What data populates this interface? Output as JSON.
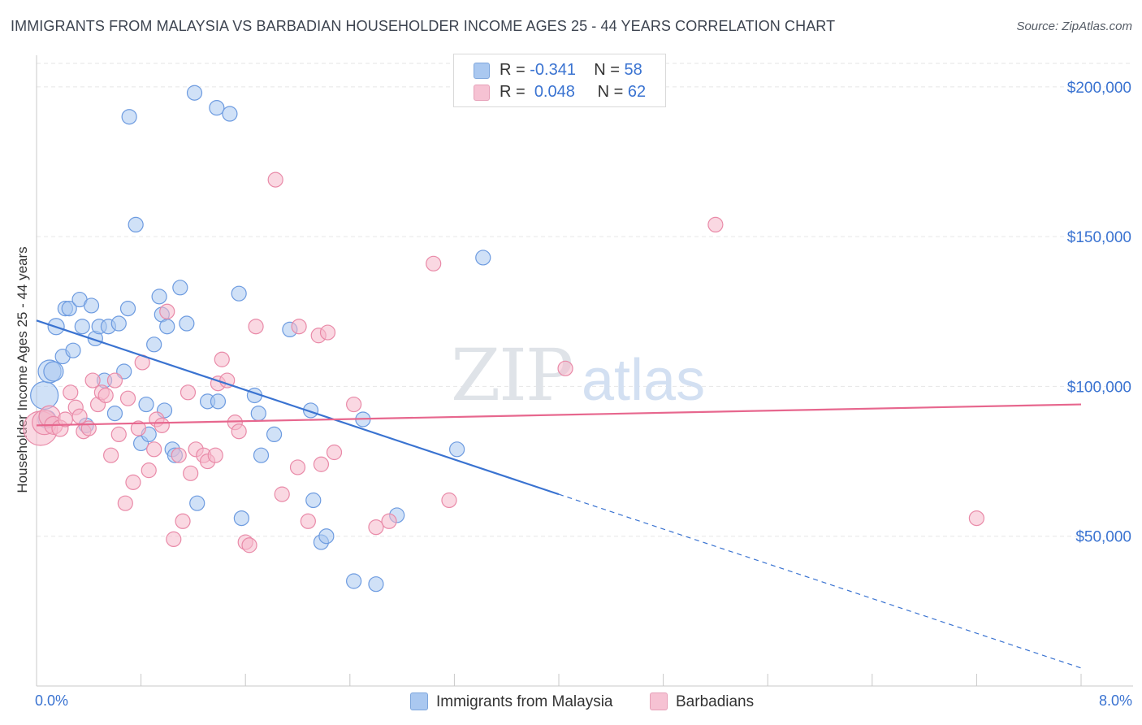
{
  "title": "IMMIGRANTS FROM MALAYSIA VS BARBADIAN HOUSEHOLDER INCOME AGES 25 - 44 YEARS CORRELATION CHART",
  "source": "Source: ZipAtlas.com",
  "watermark": {
    "zip": "ZIP",
    "atlas": "atlas"
  },
  "legend": {
    "series1": {
      "r_label": "R =",
      "r_value": "-0.341",
      "n_label": "N =",
      "n_value": "58"
    },
    "series2": {
      "r_label": "R =",
      "r_value": "0.048",
      "n_label": "N =",
      "n_value": "62"
    }
  },
  "colors": {
    "malaysia": "#3a73d1",
    "malaysia_fill": "#aac8f0",
    "barbadian": "#e7678e",
    "barbadian_fill": "#f6b8cb",
    "tick_label": "#3a73d1"
  },
  "chart_data": {
    "type": "scatter",
    "xlabel": "",
    "ylabel": "Householder Income Ages 25 - 44 years",
    "x_tick_labels": [
      "0.0%",
      "8.0%"
    ],
    "y_tick_labels": [
      "$50,000",
      "$100,000",
      "$150,000",
      "$200,000"
    ],
    "y_ticks": [
      50000,
      100000,
      150000,
      200000
    ],
    "xlim": [
      0.0,
      8.0
    ],
    "ylim": [
      0,
      210000
    ],
    "grid": true,
    "legend_position": "bottom",
    "series": [
      {
        "name": "Immigrants from Malaysia",
        "trend": {
          "x": [
            0.0,
            4.0,
            8.0
          ],
          "y": [
            122000,
            64000,
            6000
          ],
          "dashed_from": 4.0
        },
        "points": [
          [
            0.06,
            97000
          ],
          [
            0.08,
            89000
          ],
          [
            0.1,
            105000
          ],
          [
            0.13,
            105000
          ],
          [
            0.15,
            120000
          ],
          [
            0.2,
            110000
          ],
          [
            0.22,
            126000
          ],
          [
            0.25,
            126000
          ],
          [
            0.28,
            112000
          ],
          [
            0.33,
            129000
          ],
          [
            0.35,
            120000
          ],
          [
            0.38,
            87000
          ],
          [
            0.42,
            127000
          ],
          [
            0.45,
            116000
          ],
          [
            0.48,
            120000
          ],
          [
            0.52,
            102000
          ],
          [
            0.55,
            120000
          ],
          [
            0.6,
            91000
          ],
          [
            0.63,
            121000
          ],
          [
            0.67,
            105000
          ],
          [
            0.7,
            126000
          ],
          [
            0.71,
            190000
          ],
          [
            0.76,
            154000
          ],
          [
            0.8,
            81000
          ],
          [
            0.84,
            94000
          ],
          [
            0.86,
            84000
          ],
          [
            0.9,
            114000
          ],
          [
            0.94,
            130000
          ],
          [
            0.96,
            124000
          ],
          [
            0.98,
            92000
          ],
          [
            1.0,
            120000
          ],
          [
            1.04,
            79000
          ],
          [
            1.06,
            77000
          ],
          [
            1.1,
            133000
          ],
          [
            1.15,
            121000
          ],
          [
            1.21,
            198000
          ],
          [
            1.23,
            61000
          ],
          [
            1.31,
            95000
          ],
          [
            1.38,
            193000
          ],
          [
            1.39,
            95000
          ],
          [
            1.48,
            191000
          ],
          [
            1.55,
            131000
          ],
          [
            1.57,
            56000
          ],
          [
            1.67,
            97000
          ],
          [
            1.7,
            91000
          ],
          [
            1.72,
            77000
          ],
          [
            1.82,
            84000
          ],
          [
            1.94,
            119000
          ],
          [
            2.1,
            92000
          ],
          [
            2.12,
            62000
          ],
          [
            2.18,
            48000
          ],
          [
            2.22,
            50000
          ],
          [
            2.43,
            35000
          ],
          [
            2.5,
            89000
          ],
          [
            2.6,
            34000
          ],
          [
            2.76,
            57000
          ],
          [
            3.22,
            79000
          ],
          [
            3.42,
            143000
          ]
        ],
        "sizes": [
          18,
          12,
          15,
          13,
          11,
          10,
          10,
          10,
          10,
          10,
          10,
          10,
          10,
          10,
          10,
          10,
          10,
          10,
          10,
          10,
          10,
          10,
          10,
          10,
          10,
          10,
          10,
          10,
          10,
          10,
          10,
          10,
          10,
          10,
          10,
          10,
          10,
          10,
          10,
          10,
          10,
          10,
          10,
          10,
          10,
          10,
          10,
          10,
          10,
          10,
          10,
          10,
          10,
          10,
          10,
          10,
          10,
          10
        ]
      },
      {
        "name": "Barbadians",
        "trend": {
          "x": [
            0.0,
            8.0
          ],
          "y": [
            87000,
            94000
          ]
        },
        "points": [
          [
            0.03,
            86000
          ],
          [
            0.06,
            88000
          ],
          [
            0.1,
            90000
          ],
          [
            0.13,
            87000
          ],
          [
            0.18,
            86000
          ],
          [
            0.22,
            89000
          ],
          [
            0.26,
            98000
          ],
          [
            0.3,
            93000
          ],
          [
            0.33,
            90000
          ],
          [
            0.36,
            85000
          ],
          [
            0.4,
            86000
          ],
          [
            0.43,
            102000
          ],
          [
            0.47,
            94000
          ],
          [
            0.5,
            98000
          ],
          [
            0.53,
            97000
          ],
          [
            0.57,
            77000
          ],
          [
            0.6,
            102000
          ],
          [
            0.63,
            84000
          ],
          [
            0.68,
            61000
          ],
          [
            0.7,
            96000
          ],
          [
            0.74,
            68000
          ],
          [
            0.78,
            86000
          ],
          [
            0.81,
            108000
          ],
          [
            0.86,
            72000
          ],
          [
            0.9,
            79000
          ],
          [
            0.92,
            89000
          ],
          [
            0.96,
            87000
          ],
          [
            1.0,
            125000
          ],
          [
            1.05,
            49000
          ],
          [
            1.09,
            77000
          ],
          [
            1.12,
            55000
          ],
          [
            1.16,
            98000
          ],
          [
            1.18,
            71000
          ],
          [
            1.22,
            79000
          ],
          [
            1.28,
            77000
          ],
          [
            1.31,
            75000
          ],
          [
            1.37,
            77000
          ],
          [
            1.39,
            101000
          ],
          [
            1.42,
            109000
          ],
          [
            1.46,
            102000
          ],
          [
            1.52,
            88000
          ],
          [
            1.55,
            85000
          ],
          [
            1.6,
            48000
          ],
          [
            1.63,
            47000
          ],
          [
            1.68,
            120000
          ],
          [
            1.83,
            169000
          ],
          [
            1.88,
            64000
          ],
          [
            2.0,
            73000
          ],
          [
            2.01,
            120000
          ],
          [
            2.08,
            55000
          ],
          [
            2.16,
            117000
          ],
          [
            2.23,
            118000
          ],
          [
            2.28,
            78000
          ],
          [
            2.43,
            94000
          ],
          [
            2.18,
            74000
          ],
          [
            2.6,
            53000
          ],
          [
            2.7,
            55000
          ],
          [
            3.04,
            141000
          ],
          [
            3.16,
            62000
          ],
          [
            4.05,
            106000
          ],
          [
            5.2,
            154000
          ],
          [
            7.2,
            56000
          ]
        ],
        "sizes": [
          22,
          16,
          14,
          12,
          11,
          10,
          10,
          10,
          10,
          10,
          10,
          10,
          10,
          10,
          10,
          10,
          10,
          10,
          10,
          10,
          10,
          10,
          10,
          10,
          10,
          10,
          10,
          10,
          10,
          10,
          10,
          10,
          10,
          10,
          10,
          10,
          10,
          10,
          10,
          10,
          10,
          10,
          10,
          10,
          10,
          10,
          10,
          10,
          10,
          10,
          10,
          10,
          10,
          10,
          10,
          10,
          10,
          10,
          10,
          10,
          10,
          10
        ]
      }
    ]
  }
}
